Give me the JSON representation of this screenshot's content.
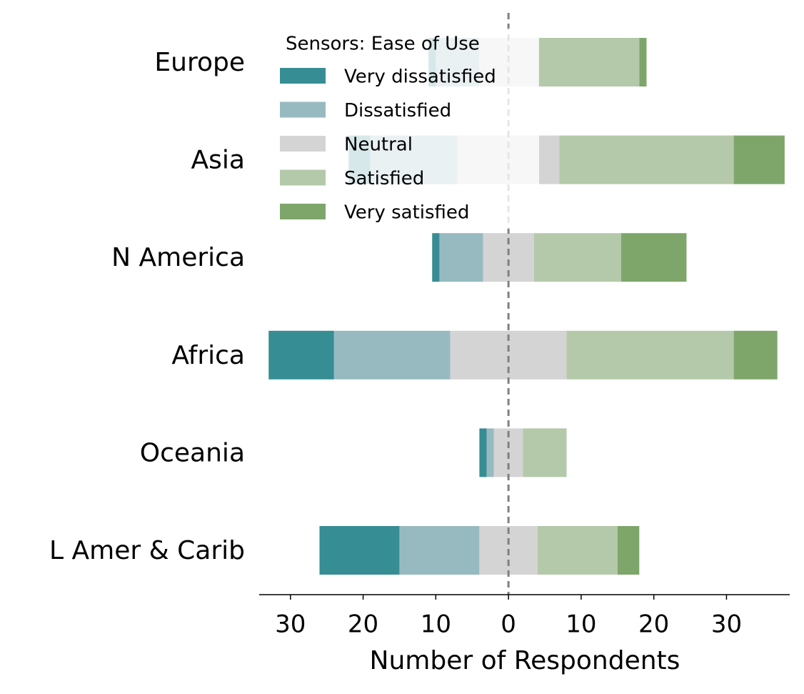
{
  "chart_data": {
    "type": "diverging_bar",
    "categories": [
      "Europe",
      "Asia",
      "N America",
      "Africa",
      "Oceania",
      "L Amer & Carib"
    ],
    "series": [
      {
        "name": "Very dissatisfied",
        "color": "#378d94",
        "values": [
          1,
          3,
          1,
          9,
          1,
          11
        ]
      },
      {
        "name": "Dissatisfied",
        "color": "#97bac0",
        "values": [
          6,
          12,
          6,
          16,
          1,
          11
        ]
      },
      {
        "name": "Neutral",
        "color": "#d4d4d4",
        "values": [
          8,
          14,
          7,
          16,
          4,
          8
        ]
      },
      {
        "name": "Satisfied",
        "color": "#b4c9a9",
        "values": [
          14,
          24,
          12,
          23,
          6,
          11
        ]
      },
      {
        "name": "Very satisfied",
        "color": "#7ea66b",
        "values": [
          1,
          7,
          9,
          6,
          0,
          3
        ]
      }
    ],
    "legend_title": "Sensors: Ease of Use",
    "legend": "upper left",
    "x_label": "Number of Respondents",
    "xlim": [
      -34.3,
      38.7
    ],
    "xticks": [
      {
        "value": -30,
        "label": "30"
      },
      {
        "value": -20,
        "label": "20"
      },
      {
        "value": -10,
        "label": "10"
      },
      0,
      10,
      20,
      30
    ]
  }
}
